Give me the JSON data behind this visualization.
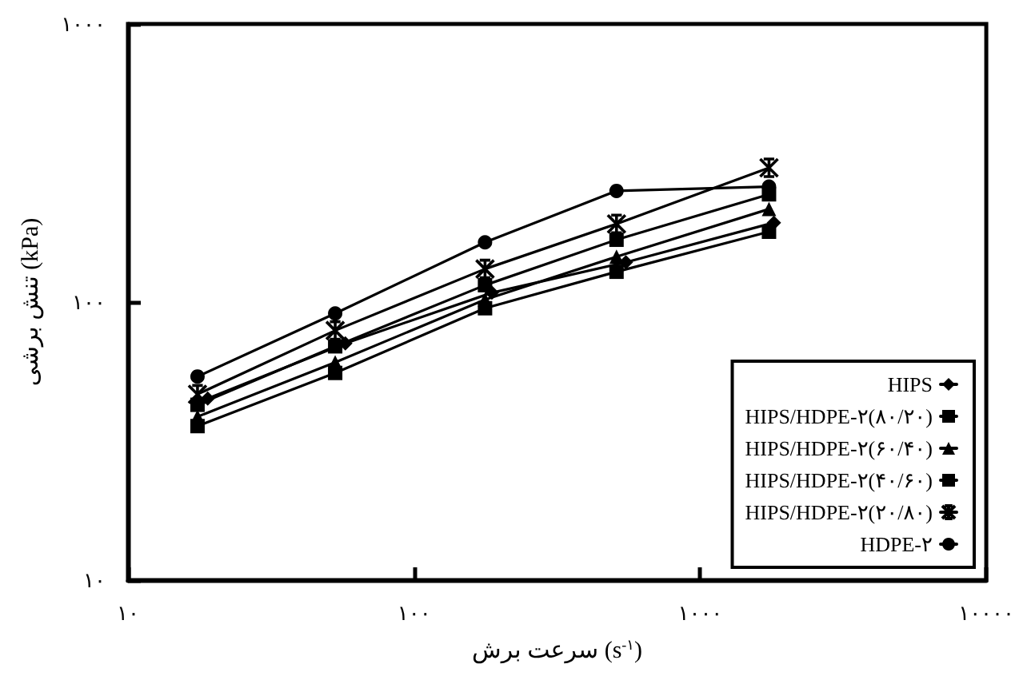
{
  "chart_data": {
    "type": "line",
    "xlabel": "سرعت برش (s$^{-۱}$)",
    "ylabel": "تنش برشی (kPa)",
    "log": "xy",
    "grid": false,
    "legend": "bottom right",
    "line_style": "solid",
    "x": [
      17.5,
      53,
      177,
      510,
      1740
    ],
    "xlim": [
      10,
      10000
    ],
    "xticks": [
      {
        "value": 10,
        "label": "۱۰"
      },
      {
        "value": 100,
        "label": "۱۰۰"
      },
      {
        "value": 1000,
        "label": "۱۰۰۰"
      },
      {
        "value": 10000,
        "label": "۱۰۰۰۰"
      }
    ],
    "ylim": [
      10,
      1000
    ],
    "yticks": [
      {
        "value": 10,
        "label": "۱۰"
      },
      {
        "value": 100,
        "label": "۱۰۰"
      },
      {
        "value": 1000,
        "label": "۱۰۰۰"
      }
    ],
    "series": [
      {
        "name": "HIPS",
        "color": "#000000",
        "marker": "diamond",
        "x": [
          19,
          57.5,
          187,
          550,
          1810
        ],
        "values": [
          45,
          71,
          108,
          139,
          193
        ]
      },
      {
        "name": "HIPS/HDPE-۲(۸۰/۲۰)",
        "color": "#000000",
        "marker": "square",
        "values": [
          35.8,
          55.6,
          95,
          128.5,
          179
        ]
      },
      {
        "name": "HIPS/HDPE-۲(۶۰/۴۰)",
        "color": "#000000",
        "marker": "triangle",
        "values": [
          38.7,
          60.7,
          102,
          145.5,
          216
        ]
      },
      {
        "name": "HIPS/HDPE-۲(۴۰/۶۰)",
        "color": "#000000",
        "marker": "square",
        "values": [
          42.7,
          69.3,
          115,
          167.5,
          244
        ]
      },
      {
        "name": "HIPS/HDPE-۲(۲۰/۸۰)",
        "color": "#000000",
        "marker": "cross",
        "values": [
          46.6,
          79,
          131.5,
          191,
          304
        ]
      },
      {
        "name": "HDPE-۲",
        "color": "#000000",
        "marker": "circle",
        "values": [
          54,
          91,
          164,
          251,
          260
        ]
      }
    ]
  }
}
